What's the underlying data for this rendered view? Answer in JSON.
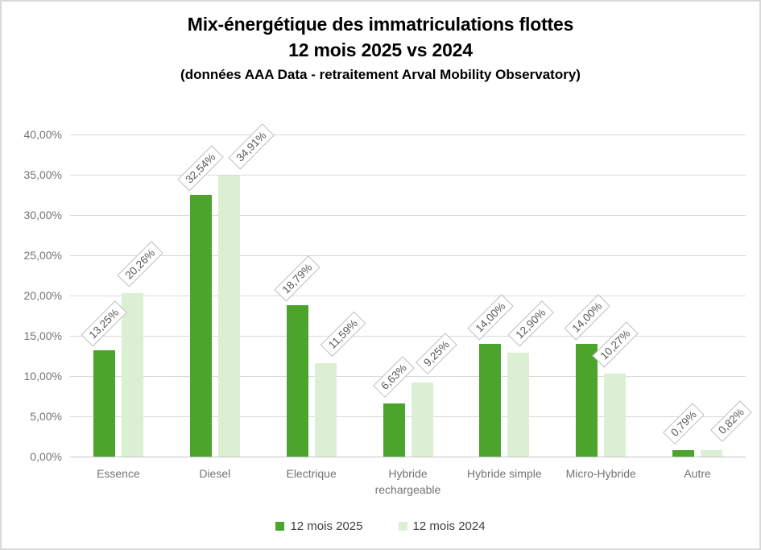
{
  "title": {
    "line1": "Mix-énergétique des immatriculations  flottes",
    "line2": "12 mois 2025 vs 2024",
    "subtitle": "(données AAA Data - retraitement Arval Mobility Observatory)"
  },
  "chart_data": {
    "type": "bar",
    "categories": [
      "Essence",
      "Diesel",
      "Electrique",
      "Hybride rechargeable",
      "Hybride simple",
      "Micro-Hybride",
      "Autre"
    ],
    "series": [
      {
        "name": "12 mois 2025",
        "color": "#4CA42C",
        "values": [
          13.25,
          32.54,
          18.79,
          6.63,
          14.0,
          14.0,
          0.79
        ],
        "labels": [
          "13,25%",
          "32,54%",
          "18,79%",
          "6,63%",
          "14,00%",
          "14,00%",
          "0,79%"
        ]
      },
      {
        "name": "12 mois 2024",
        "color": "#DBEFD3",
        "values": [
          20.26,
          34.91,
          11.59,
          9.25,
          12.9,
          10.27,
          0.82
        ],
        "labels": [
          "20,26%",
          "34,91%",
          "11,59%",
          "9,25%",
          "12,90%",
          "10,27%",
          "0,82%"
        ]
      }
    ],
    "y_axis": {
      "ticks": [
        "40,00%",
        "35,00%",
        "30,00%",
        "25,00%",
        "20,00%",
        "15,00%",
        "10,00%",
        "5,00%",
        "0,00%"
      ],
      "min": 0,
      "max": 40,
      "step": 5
    },
    "grid": true,
    "legend_position": "bottom",
    "data_labels": {
      "rotation_deg": -45,
      "boxed": true
    }
  },
  "colors": {
    "series_2025": "#4CA42C",
    "series_2024": "#DBEFD3",
    "gridline": "#D9D9D9",
    "axis_line": "#C6C6C6",
    "axis_text": "#737373",
    "value_label_text": "#595959",
    "value_label_border": "#BFBFBF",
    "title_text": "#000000",
    "frame_border": "#D9D9D9"
  }
}
